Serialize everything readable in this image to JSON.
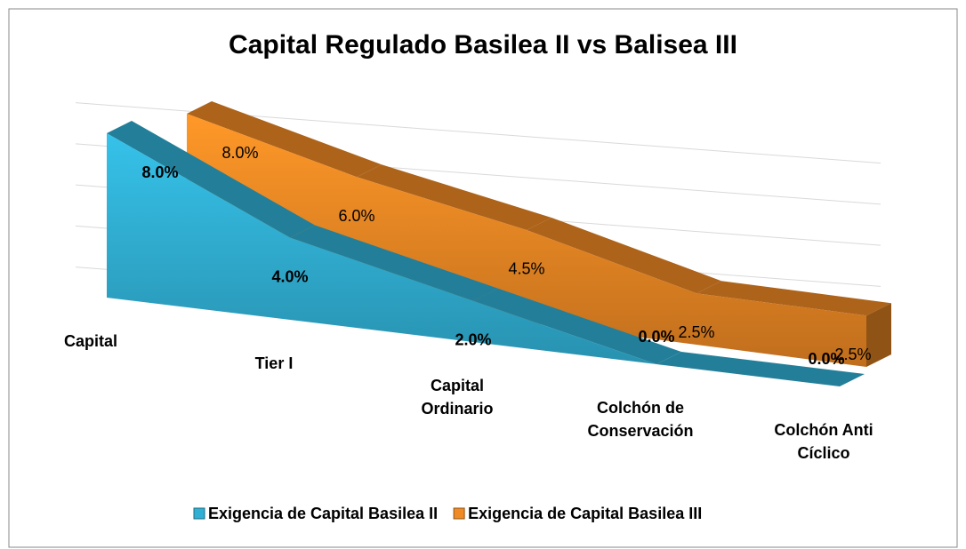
{
  "chart_data": {
    "type": "area3d",
    "title": "Capital Regulado Basilea II vs Balisea III",
    "categories": [
      "Capital",
      "Tier I",
      "Capital\nOrdinario",
      "Colchón de\nConservación",
      "Colchón Anti\nCíclico"
    ],
    "series": [
      {
        "name": "Exigencia de Capital Basilea II",
        "color": "#31b0d5",
        "values": [
          8,
          4,
          2,
          0,
          0
        ],
        "value_labels": [
          "8.0%",
          "4.0%",
          "2.0%",
          "0.0%",
          "0.0%"
        ]
      },
      {
        "name": "Exigencia de Capital Basilea III",
        "color": "#f08a24",
        "values": [
          8,
          6,
          4.5,
          2.5,
          2.5
        ],
        "value_labels": [
          "8.0%",
          "6.0%",
          "4.5%",
          "2.5%",
          "2.5%"
        ]
      }
    ],
    "ylim": [
      0,
      8
    ],
    "yticks": [
      0,
      2,
      4,
      6,
      8
    ],
    "grid": true,
    "legend": "bottom"
  }
}
